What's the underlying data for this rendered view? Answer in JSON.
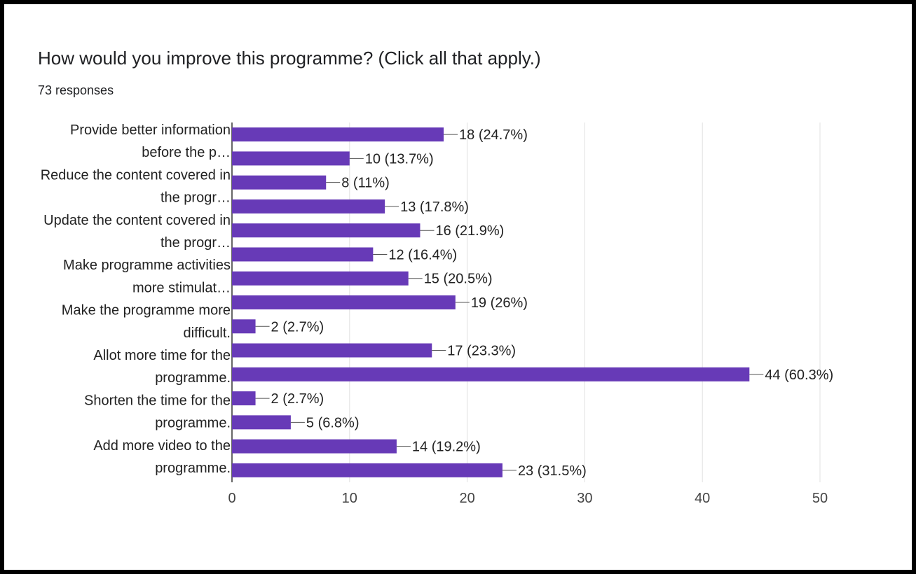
{
  "header": {
    "title": "How would you improve this programme?   (Click all that apply.)",
    "responses": "73 responses"
  },
  "colors": {
    "bar": "#673ab7",
    "grid": "#e0e0e0",
    "axis": "#333333"
  },
  "chart_data": {
    "type": "bar",
    "orientation": "horizontal",
    "category_labels": [
      [
        "Provide better information",
        "before the p…"
      ],
      [
        "Reduce the content covered in",
        "the progr…"
      ],
      [
        "Update the content covered in",
        "the progr…"
      ],
      [
        "Make programme activities",
        "more stimulat…"
      ],
      [
        "Make the programme more",
        "difficult."
      ],
      [
        "Allot more time for the",
        "programme."
      ],
      [
        "Shorten the time for the",
        "programme."
      ],
      [
        "Add more video to the",
        "programme."
      ]
    ],
    "values": [
      18,
      10,
      8,
      13,
      16,
      12,
      15,
      19,
      2,
      17,
      44,
      2,
      5,
      14,
      23
    ],
    "data_labels": [
      "18 (24.7%)",
      "10 (13.7%)",
      "8 (11%)",
      "13 (17.8%)",
      "16 (21.9%)",
      "12 (16.4%)",
      "15 (20.5%)",
      "19 (26%)",
      "2 (2.7%)",
      "17 (23.3%)",
      "44 (60.3%)",
      "2 (2.7%)",
      "5 (6.8%)",
      "14 (19.2%)",
      "23 (31.5%)"
    ],
    "xlim": [
      0,
      50
    ],
    "xticks": [
      0,
      10,
      20,
      30,
      40,
      50
    ],
    "grid": true,
    "legend": "none"
  }
}
